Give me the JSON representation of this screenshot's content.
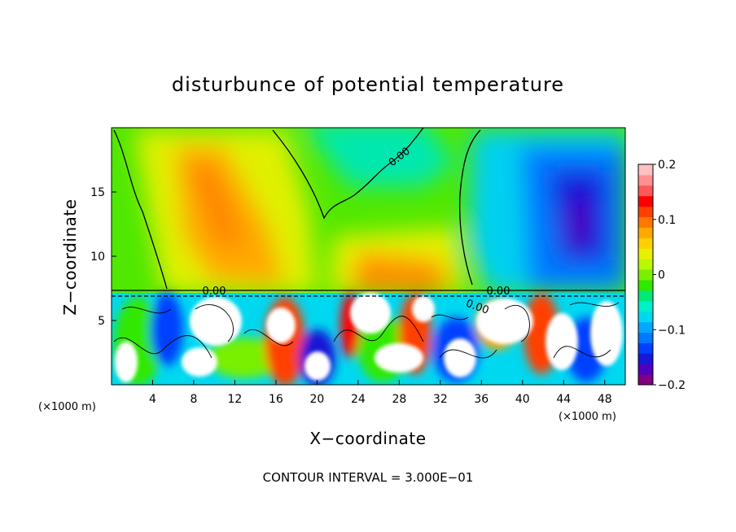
{
  "chart_data": {
    "type": "heatmap",
    "title": "disturbunce of potential temperature",
    "xlabel": "X−coordinate",
    "ylabel": "Z−coordinate",
    "x_unit": "(×1000 m)",
    "y_unit": "(×1000 m)",
    "xlim": [
      0,
      50
    ],
    "ylim": [
      0,
      20
    ],
    "x_ticks": [
      "4",
      "8",
      "12",
      "16",
      "20",
      "24",
      "28",
      "32",
      "36",
      "40",
      "44",
      "48"
    ],
    "x_tick_values": [
      4,
      8,
      12,
      16,
      20,
      24,
      28,
      32,
      36,
      40,
      44,
      48
    ],
    "y_ticks": [
      "5",
      "10",
      "15"
    ],
    "y_tick_values": [
      5,
      10,
      15
    ],
    "colorbar": {
      "min": -0.2,
      "max": 0.2,
      "tick_labels": [
        "0.2",
        "0.1",
        "0",
        "−0.1",
        "−0.2"
      ],
      "tick_values": [
        0.2,
        0.1,
        0,
        -0.1,
        -0.2
      ],
      "colors": [
        "#800080",
        "#5000c0",
        "#1818d8",
        "#0040ff",
        "#0078ff",
        "#00a8ff",
        "#00d8f0",
        "#00f0c8",
        "#00e878",
        "#30e800",
        "#78f000",
        "#b8f800",
        "#e8f000",
        "#ffd000",
        "#ffa800",
        "#ff7800",
        "#ff4000",
        "#ff0000",
        "#ff5858",
        "#ff9090",
        "#ffc0c0"
      ]
    },
    "contour_labels": [
      "0.00",
      "0.00",
      "0.00",
      "0.00"
    ],
    "annotation": "CONTOUR INTERVAL = 3.000E−01",
    "upper_field_regions": [
      {
        "x_range": [
          0,
          6
        ],
        "z_range": [
          7.5,
          20
        ],
        "approx_value": 0.02
      },
      {
        "x_range": [
          5,
          20
        ],
        "z_range": [
          8,
          19
        ],
        "approx_value": 0.12
      },
      {
        "x_range": [
          20,
          34
        ],
        "z_range": [
          13,
          20
        ],
        "approx_value": 0.02
      },
      {
        "x_range": [
          22,
          33
        ],
        "z_range": [
          7.5,
          11
        ],
        "approx_value": 0.1
      },
      {
        "x_range": [
          34,
          50
        ],
        "z_range": [
          7.5,
          20
        ],
        "approx_value": -0.13
      }
    ]
  }
}
